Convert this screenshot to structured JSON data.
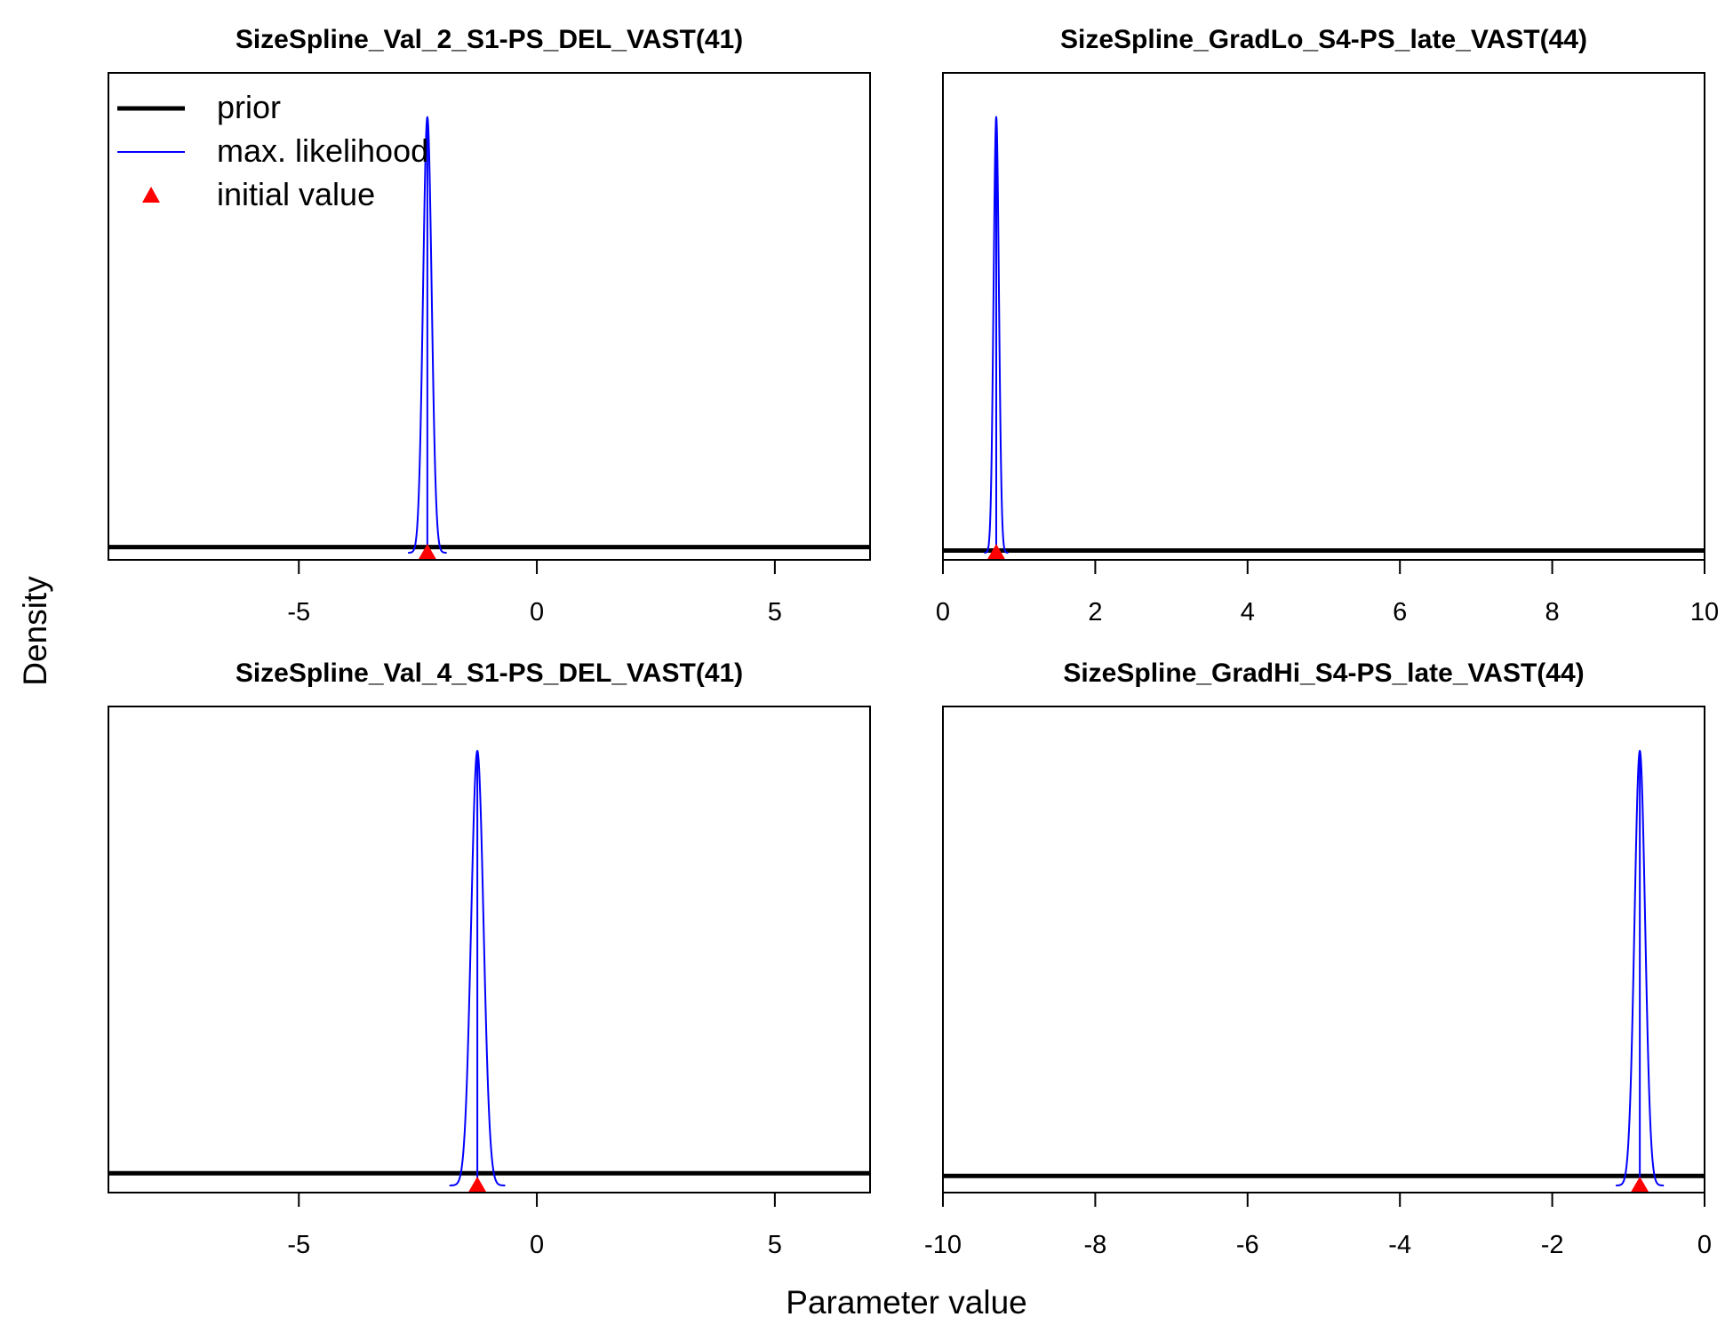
{
  "chart_data": [
    {
      "type": "line",
      "title": "SizeSpline_Val_2_S1-PS_DEL_VAST(41)",
      "xlim": [
        -9,
        7
      ],
      "xticks": [
        "-5",
        "0",
        "5"
      ],
      "prior": {
        "density": 0.013
      },
      "max_likelihood": {
        "mean": -2.3,
        "sd": 0.09,
        "peak": 1.0
      },
      "initial_value": -2.3
    },
    {
      "type": "line",
      "title": "SizeSpline_GradLo_S4-PS_late_VAST(44)",
      "xlim": [
        0,
        10
      ],
      "xticks": [
        "0",
        "2",
        "4",
        "6",
        "8",
        "10"
      ],
      "prior": {
        "density": 0.005
      },
      "max_likelihood": {
        "mean": 0.7,
        "sd": 0.035,
        "peak": 1.0
      },
      "initial_value": 0.7
    },
    {
      "type": "line",
      "title": "SizeSpline_Val_4_S1-PS_DEL_VAST(41)",
      "xlim": [
        -9,
        7
      ],
      "xticks": [
        "-5",
        "0",
        "5"
      ],
      "prior": {
        "density": 0.028
      },
      "max_likelihood": {
        "mean": -1.25,
        "sd": 0.13,
        "peak": 1.0
      },
      "initial_value": -1.25
    },
    {
      "type": "line",
      "title": "SizeSpline_GradHi_S4-PS_late_VAST(44)",
      "xlim": [
        -10,
        0
      ],
      "xticks": [
        "-10",
        "-8",
        "-6",
        "-4",
        "-2",
        "0"
      ],
      "prior": {
        "density": 0.022
      },
      "max_likelihood": {
        "mean": -0.85,
        "sd": 0.07,
        "peak": 1.0
      },
      "initial_value": -0.85
    }
  ],
  "labels": {
    "xlabel": "Parameter value",
    "ylabel": "Density"
  },
  "legend": {
    "placement": "top-left",
    "entries": [
      "prior",
      "max. likelihood",
      "initial value"
    ]
  },
  "colors": {
    "prior": "#000000",
    "max_likelihood": "#0000ff",
    "initial_value": "#ff0000"
  }
}
